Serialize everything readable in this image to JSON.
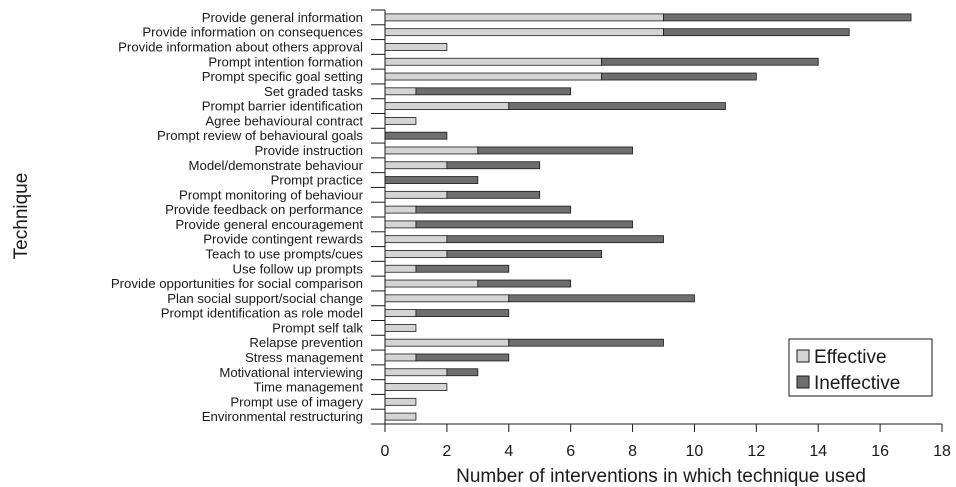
{
  "chart_data": {
    "type": "bar",
    "orientation": "horizontal",
    "stacked": true,
    "xlabel": "Number of interventions in which technique used",
    "ylabel": "Technique",
    "xlim": [
      0,
      18
    ],
    "xticks": [
      0,
      2,
      4,
      6,
      8,
      10,
      12,
      14,
      16,
      18
    ],
    "grid": false,
    "legend_position": "bottom-right",
    "categories": [
      "Provide general information",
      "Provide information on consequences",
      "Provide information about others approval",
      "Prompt intention formation",
      "Prompt specific goal setting",
      "Set graded tasks",
      "Prompt barrier identification",
      "Agree behavioural contract",
      "Prompt review of behavioural goals",
      "Provide instruction",
      "Model/demonstrate behaviour",
      "Prompt practice",
      "Prompt monitoring of behaviour",
      "Provide feedback on performance",
      "Provide general encouragement",
      "Provide contingent rewards",
      "Teach to use prompts/cues",
      "Use follow up prompts",
      "Provide opportunities for social comparison",
      "Plan social support/social change",
      "Prompt identification as role model",
      "Prompt self talk",
      "Relapse prevention",
      "Stress management",
      "Motivational interviewing",
      "Time management",
      "Prompt use of imagery",
      "Environmental restructuring"
    ],
    "series": [
      {
        "name": "Effective",
        "color": "#d4d4d4",
        "values": [
          9,
          9,
          2,
          7,
          7,
          1,
          4,
          1,
          0,
          3,
          2,
          0,
          2,
          1,
          1,
          2,
          2,
          1,
          3,
          4,
          1,
          1,
          4,
          1,
          2,
          2,
          1,
          1
        ]
      },
      {
        "name": "Ineffective",
        "color": "#6e6e6e",
        "values": [
          8,
          6,
          0,
          7,
          5,
          5,
          7,
          0,
          2,
          5,
          3,
          3,
          3,
          5,
          7,
          7,
          5,
          3,
          3,
          6,
          3,
          0,
          5,
          3,
          1,
          0,
          0,
          0
        ]
      }
    ]
  }
}
